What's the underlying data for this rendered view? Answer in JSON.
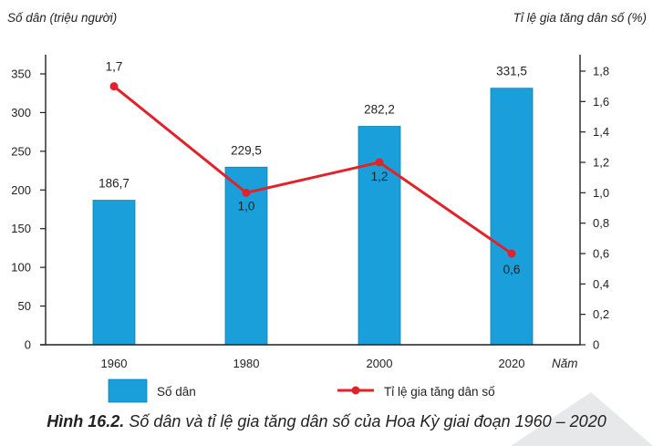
{
  "colors": {
    "bar": "#1a9fdb",
    "bar_stroke": "#0d7fb5",
    "line": "#e12329",
    "axis": "#231f20",
    "watermark": "#e6e8ea"
  },
  "caption": {
    "number": "Hình 16.2.",
    "text": "Số dân và tỉ lệ gia tăng dân số của Hoa Kỳ giai đoạn 1960 – 2020"
  },
  "chart_data": {
    "type": "bar+line",
    "title": "",
    "categories": [
      "1960",
      "1980",
      "2000",
      "2020"
    ],
    "xlabel": "Năm",
    "y_left": {
      "label": "Số dân (triệu người)",
      "ticks": [
        "0",
        "50",
        "100",
        "150",
        "200",
        "250",
        "300",
        "350"
      ],
      "range": [
        0,
        350
      ]
    },
    "y_right": {
      "label": "Tỉ lệ gia tăng dân số (%)",
      "ticks": [
        "0",
        "0,2",
        "0,4",
        "0,6",
        "0,8",
        "1,0",
        "1,2",
        "1,4",
        "1,6",
        "1,8"
      ],
      "range": [
        0,
        1.8
      ]
    },
    "series": [
      {
        "name": "Số dân",
        "kind": "bar",
        "axis": "left",
        "values": [
          186.7,
          229.5,
          282.2,
          331.5
        ],
        "labels": [
          "186,7",
          "229,5",
          "282,2",
          "331,5"
        ]
      },
      {
        "name": "Tỉ lệ gia tăng dân số",
        "kind": "line",
        "axis": "right",
        "values": [
          1.7,
          1.0,
          1.2,
          0.6
        ],
        "labels": [
          "1,7",
          "1,0",
          "1,2",
          "0,6"
        ]
      }
    ],
    "legend": {
      "placement": "bottom",
      "items": [
        "Số dân",
        "Tỉ lệ gia tăng dân số"
      ]
    }
  }
}
